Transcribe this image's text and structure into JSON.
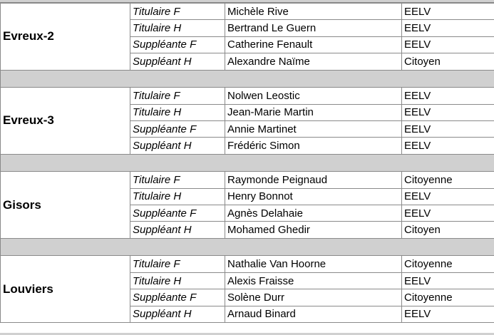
{
  "groups": [
    {
      "circonscription": "Evreux-2",
      "rows": [
        {
          "role": "Titulaire F",
          "name": "Michèle Rive",
          "party": "EELV"
        },
        {
          "role": "Titulaire H",
          "name": "Bertrand Le Guern",
          "party": "EELV"
        },
        {
          "role": "Suppléante F",
          "name": "Catherine Fenault",
          "party": "EELV"
        },
        {
          "role": "Suppléant H",
          "name": "Alexandre Naïme",
          "party": "Citoyen"
        }
      ]
    },
    {
      "circonscription": "Evreux-3",
      "rows": [
        {
          "role": "Titulaire F",
          "name": "Nolwen Leostic",
          "party": "EELV"
        },
        {
          "role": "Titulaire H",
          "name": "Jean-Marie Martin",
          "party": "EELV"
        },
        {
          "role": "Suppléante F",
          "name": "Annie Martinet",
          "party": "EELV"
        },
        {
          "role": "Suppléant H",
          "name": "Frédéric Simon",
          "party": "EELV"
        }
      ]
    },
    {
      "circonscription": "Gisors",
      "rows": [
        {
          "role": "Titulaire F",
          "name": "Raymonde Peignaud",
          "party": "Citoyenne"
        },
        {
          "role": "Titulaire H",
          "name": "Henry Bonnot",
          "party": "EELV"
        },
        {
          "role": "Suppléante F",
          "name": "Agnès Delahaie",
          "party": "EELV"
        },
        {
          "role": "Suppléant H",
          "name": "Mohamed Ghedir",
          "party": "Citoyen"
        }
      ]
    },
    {
      "circonscription": "Louviers",
      "rows": [
        {
          "role": "Titulaire F",
          "name": "Nathalie Van Hoorne",
          "party": "Citoyenne"
        },
        {
          "role": "Titulaire H",
          "name": "Alexis Fraisse",
          "party": "EELV"
        },
        {
          "role": "Suppléante F",
          "name": "Solène Durr",
          "party": "Citoyenne"
        },
        {
          "role": "Suppléant H",
          "name": "Arnaud Binard",
          "party": "EELV"
        }
      ]
    }
  ],
  "colors": {
    "separator": "#d0d0d0",
    "border": "#8a8a8a"
  }
}
